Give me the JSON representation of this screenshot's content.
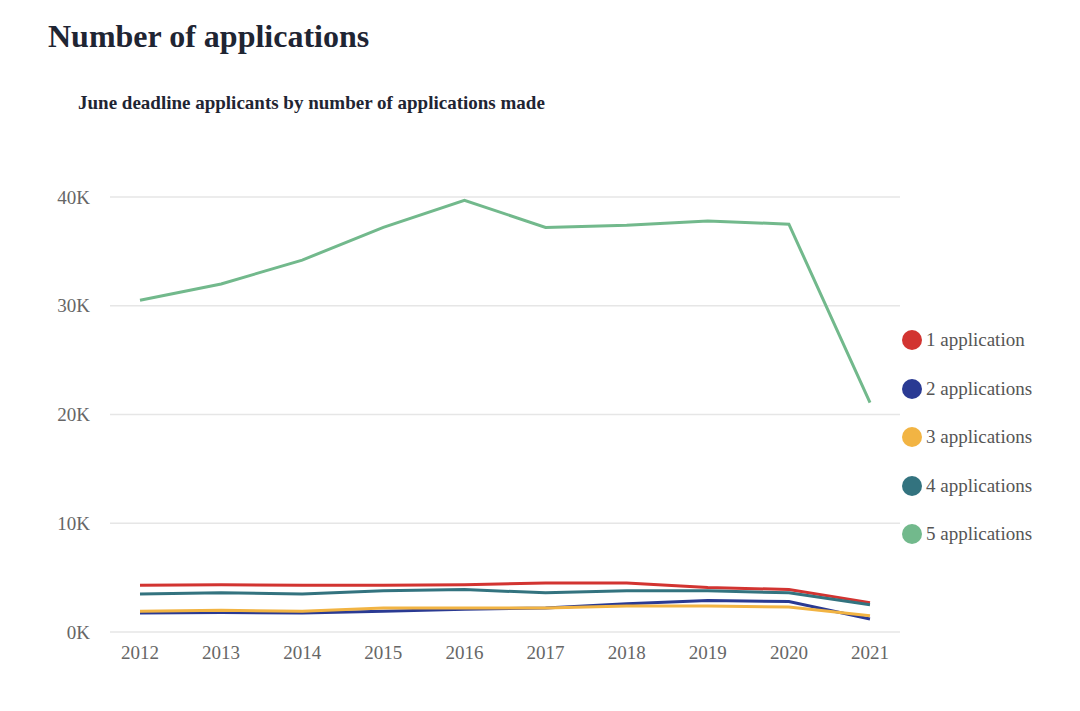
{
  "chart_data": {
    "type": "line",
    "title": "Number of applications",
    "subtitle": "June deadline applicants by number of applications made",
    "categories": [
      "2012",
      "2013",
      "2014",
      "2015",
      "2016",
      "2017",
      "2018",
      "2019",
      "2020",
      "2021"
    ],
    "series": [
      {
        "name": "1 application",
        "color": "#d23431",
        "values": [
          4300,
          4350,
          4300,
          4300,
          4350,
          4500,
          4500,
          4100,
          3900,
          2700
        ]
      },
      {
        "name": "2 applications",
        "color": "#2a3a93",
        "values": [
          1750,
          1800,
          1750,
          1900,
          2100,
          2200,
          2600,
          2900,
          2800,
          1200
        ]
      },
      {
        "name": "3 applications",
        "color": "#f2b443",
        "values": [
          1900,
          2000,
          1900,
          2200,
          2200,
          2200,
          2400,
          2400,
          2300,
          1500
        ]
      },
      {
        "name": "4 applications",
        "color": "#33737f",
        "values": [
          3500,
          3600,
          3500,
          3800,
          3900,
          3600,
          3800,
          3800,
          3600,
          2500
        ]
      },
      {
        "name": "5 applications",
        "color": "#72b98c",
        "values": [
          30500,
          32000,
          34200,
          37200,
          39700,
          37200,
          37400,
          37800,
          37500,
          21100
        ]
      }
    ],
    "ylim": [
      0,
      40000
    ],
    "yticks": [
      {
        "value": 0,
        "label": "0K"
      },
      {
        "value": 10000,
        "label": "10K"
      },
      {
        "value": 20000,
        "label": "20K"
      },
      {
        "value": 30000,
        "label": "30K"
      },
      {
        "value": 40000,
        "label": "40K"
      }
    ],
    "grid": true,
    "legend": "right"
  }
}
